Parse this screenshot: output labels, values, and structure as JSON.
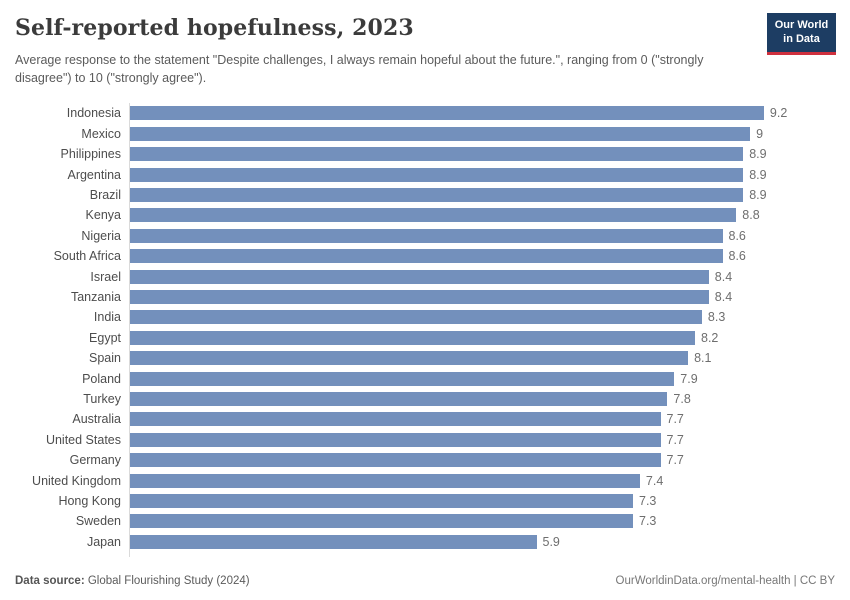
{
  "header": {
    "title": "Self-reported hopefulness, 2023",
    "subtitle": "Average response to the statement \"Despite challenges, I always remain hopeful about the future.\", ranging from 0 (\"strongly disagree\") to 10 (\"strongly agree\").",
    "logo": {
      "line1": "Our World",
      "line2": "in Data",
      "bg_color": "#1d3d63",
      "accent_color": "#cf303e"
    }
  },
  "chart_data": {
    "type": "bar",
    "orientation": "horizontal",
    "title": "Self-reported hopefulness, 2023",
    "xlabel": "",
    "ylabel": "",
    "xlim": [
      0,
      9.2
    ],
    "grid": false,
    "value_labels": true,
    "bar_color": "#7390bc",
    "categories": [
      "Indonesia",
      "Mexico",
      "Philippines",
      "Argentina",
      "Brazil",
      "Kenya",
      "Nigeria",
      "South Africa",
      "Israel",
      "Tanzania",
      "India",
      "Egypt",
      "Spain",
      "Poland",
      "Turkey",
      "Australia",
      "United States",
      "Germany",
      "United Kingdom",
      "Hong Kong",
      "Sweden",
      "Japan"
    ],
    "values": [
      9.2,
      9,
      8.9,
      8.9,
      8.9,
      8.8,
      8.6,
      8.6,
      8.4,
      8.4,
      8.3,
      8.2,
      8.1,
      7.9,
      7.8,
      7.7,
      7.7,
      7.7,
      7.4,
      7.3,
      7.3,
      5.9
    ]
  },
  "footer": {
    "source_label": "Data source:",
    "source_value": " Global Flourishing Study (2024)",
    "credit": "OurWorldinData.org/mental-health | CC BY"
  }
}
